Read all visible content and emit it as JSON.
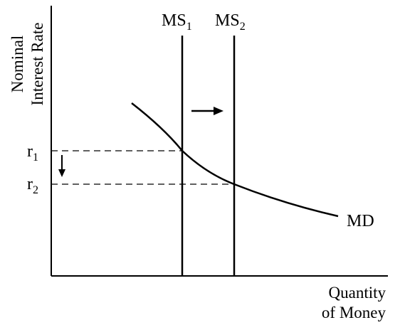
{
  "diagram": {
    "y_axis_label": {
      "line1": "Nominal",
      "line2": "Interest Rate"
    },
    "x_axis_label": {
      "line1": "Quantity",
      "line2": "of Money"
    },
    "rate_labels": [
      {
        "base": "r",
        "sub": "1"
      },
      {
        "base": "r",
        "sub": "2"
      }
    ],
    "supply_labels": [
      {
        "base": "MS",
        "sub": "1"
      },
      {
        "base": "MS",
        "sub": "2"
      }
    ],
    "demand_label": "MD",
    "colors": {
      "ink": "#000000",
      "background": "#ffffff"
    }
  }
}
